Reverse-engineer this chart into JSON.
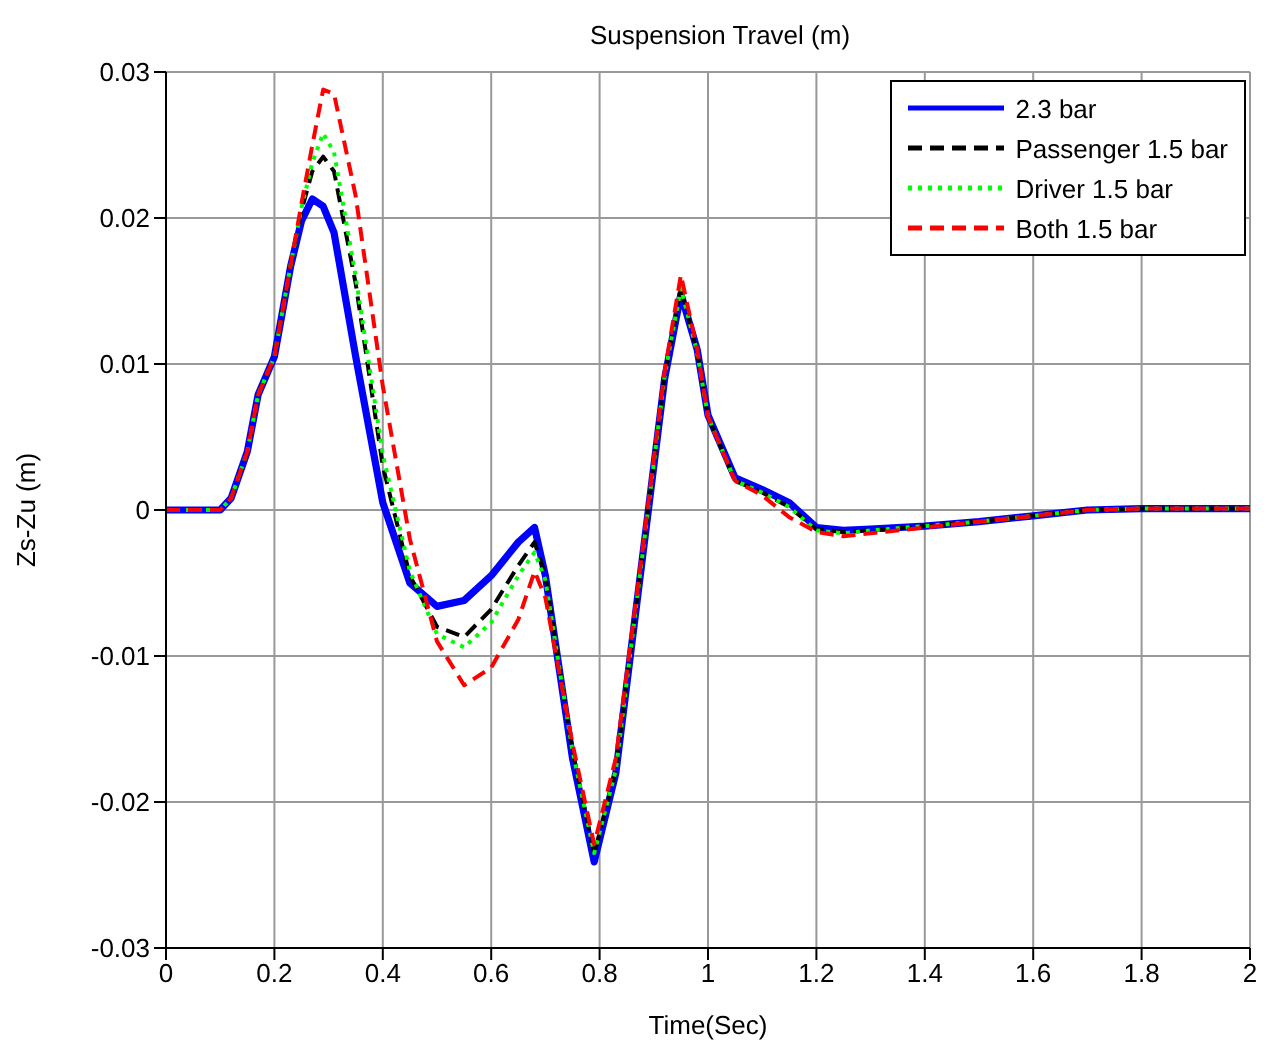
{
  "chart_data": {
    "type": "line",
    "title": "Suspension Travel (m)",
    "xlabel": "Time(Sec)",
    "ylabel": "Zs-Zu (m)",
    "x": [
      0,
      0.1,
      0.12,
      0.15,
      0.17,
      0.2,
      0.23,
      0.25,
      0.27,
      0.29,
      0.31,
      0.35,
      0.4,
      0.45,
      0.5,
      0.55,
      0.6,
      0.65,
      0.68,
      0.7,
      0.75,
      0.79,
      0.83,
      0.88,
      0.92,
      0.95,
      0.98,
      1.0,
      1.05,
      1.1,
      1.15,
      1.2,
      1.25,
      1.3,
      1.4,
      1.5,
      1.6,
      1.7,
      1.8,
      1.9,
      2.0
    ],
    "series": [
      {
        "name": "2.3 bar",
        "color": "#0000ff",
        "line_style": "solid",
        "values": [
          0,
          0,
          0.0008,
          0.004,
          0.0079,
          0.0105,
          0.0167,
          0.0198,
          0.0213,
          0.0208,
          0.019,
          0.0105,
          0.0005,
          -0.005,
          -0.0066,
          -0.0062,
          -0.0045,
          -0.0022,
          -0.0012,
          -0.0045,
          -0.017,
          -0.0241,
          -0.018,
          -0.003,
          0.009,
          0.0148,
          0.011,
          0.0065,
          0.0022,
          0.0014,
          0.0005,
          -0.0012,
          -0.0014,
          -0.0013,
          -0.0011,
          -0.0008,
          -0.0004,
          0,
          0.0001,
          0.0001,
          0.0001
        ]
      },
      {
        "name": "Passenger 1.5 bar",
        "color": "#000000",
        "line_style": "dashed",
        "values": [
          0,
          0,
          0.0008,
          0.004,
          0.0079,
          0.0105,
          0.0168,
          0.0205,
          0.0232,
          0.0242,
          0.0232,
          0.0155,
          0.003,
          -0.0045,
          -0.008,
          -0.0087,
          -0.0068,
          -0.0038,
          -0.0022,
          -0.0045,
          -0.0165,
          -0.0236,
          -0.0178,
          -0.0028,
          0.0092,
          0.0152,
          0.0108,
          0.0064,
          0.002,
          0.0012,
          0.0002,
          -0.0013,
          -0.0015,
          -0.0014,
          -0.0011,
          -0.0008,
          -0.0004,
          0,
          0.0001,
          0.0001,
          0.0001
        ]
      },
      {
        "name": "Driver 1.5 bar",
        "color": "#00ff00",
        "line_style": "dotted",
        "values": [
          0,
          0,
          0.0008,
          0.004,
          0.0079,
          0.0105,
          0.0168,
          0.0207,
          0.0238,
          0.0258,
          0.0245,
          0.016,
          0.0038,
          -0.0042,
          -0.0085,
          -0.0094,
          -0.0077,
          -0.0045,
          -0.0029,
          -0.0048,
          -0.0165,
          -0.0235,
          -0.0178,
          -0.0028,
          0.0092,
          0.0152,
          0.0108,
          0.0064,
          0.002,
          0.0012,
          0.0002,
          -0.0014,
          -0.0016,
          -0.0014,
          -0.0011,
          -0.0008,
          -0.0004,
          0,
          0.0001,
          0.0001,
          0.0001
        ]
      },
      {
        "name": "Both 1.5 bar",
        "color": "#ff0000",
        "line_style": "dashed",
        "values": [
          0,
          0,
          0.0008,
          0.004,
          0.0079,
          0.0105,
          0.0168,
          0.021,
          0.025,
          0.0288,
          0.0285,
          0.0215,
          0.0085,
          -0.002,
          -0.009,
          -0.012,
          -0.0108,
          -0.0075,
          -0.0042,
          -0.006,
          -0.016,
          -0.0229,
          -0.017,
          -0.0025,
          0.0095,
          0.0161,
          0.011,
          0.0064,
          0.002,
          0.001,
          -0.0005,
          -0.0015,
          -0.0018,
          -0.0016,
          -0.0012,
          -0.0008,
          -0.0004,
          0,
          0.0001,
          0.0001,
          0.0001
        ]
      }
    ],
    "xlim": [
      0,
      2
    ],
    "xticks": [
      0,
      0.2,
      0.4,
      0.6,
      0.8,
      1,
      1.2,
      1.4,
      1.6,
      1.8,
      2
    ],
    "ylim": [
      -0.03,
      0.03
    ],
    "yticks": [
      -0.03,
      -0.02,
      -0.01,
      0,
      0.01,
      0.02,
      0.03
    ],
    "grid": true,
    "legend": "top right",
    "marker": "none"
  }
}
